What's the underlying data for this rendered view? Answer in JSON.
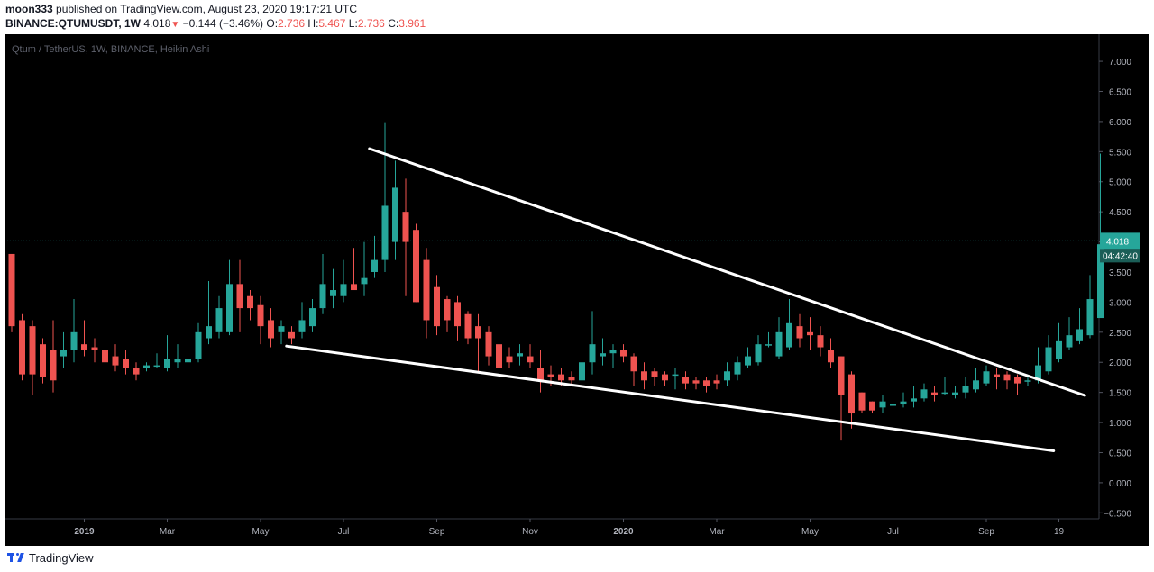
{
  "header": {
    "author": "moon333",
    "published_text": "published on TradingView.com, August 23, 2020 19:17:21 UTC",
    "symbol": "BINANCE:QTUMUSDT, 1W",
    "last": "4.018",
    "change_arrow": "▼",
    "change": "−0.144 (−3.46%)",
    "o_label": "O:",
    "o": "2.736",
    "h_label": "H:",
    "h": "5.467",
    "l_label": "L:",
    "l": "2.736",
    "c_label": "C:",
    "c": "3.961"
  },
  "footer": {
    "brand": "TradingView",
    "logo_icon": "tradingview-logo-icon"
  },
  "colors": {
    "background": "#000000",
    "up": "#26a69a",
    "down": "#ef5350",
    "axis_text": "#b2b5be",
    "price_line": "#26a69a",
    "trendline": "#ffffff"
  },
  "chart_data": {
    "type": "candlestick",
    "title": "Qtum / TetherUS, 1W, BINANCE, Heikin Ashi",
    "y_ticks": [
      "7.000",
      "6.500",
      "6.000",
      "5.500",
      "5.000",
      "4.500",
      "4.000",
      "3.500",
      "3.000",
      "2.500",
      "2.000",
      "1.500",
      "1.000",
      "0.500",
      "0.000",
      "−0.500"
    ],
    "ylim": [
      -0.6,
      7.45
    ],
    "x_ticks": [
      {
        "label": "2019",
        "week": 7,
        "bold": true
      },
      {
        "label": "Mar",
        "week": 15
      },
      {
        "label": "May",
        "week": 24
      },
      {
        "label": "Jul",
        "week": 32
      },
      {
        "label": "Sep",
        "week": 41
      },
      {
        "label": "Nov",
        "week": 50
      },
      {
        "label": "2020",
        "week": 59,
        "bold": true
      },
      {
        "label": "Mar",
        "week": 68
      },
      {
        "label": "May",
        "week": 77
      },
      {
        "label": "Jul",
        "week": 85
      },
      {
        "label": "Sep",
        "week": 94
      },
      {
        "label": "19",
        "week": 101
      }
    ],
    "x_range": [
      0,
      104
    ],
    "current_price": "4.018",
    "countdown": "04:42:40",
    "candles": [
      [
        3.8,
        2.6,
        3.8,
        2.5
      ],
      [
        2.7,
        1.8,
        2.8,
        1.7
      ],
      [
        2.6,
        1.8,
        2.7,
        1.45
      ],
      [
        2.3,
        1.75,
        2.4,
        1.65
      ],
      [
        2.2,
        1.7,
        2.7,
        1.5
      ],
      [
        2.1,
        2.2,
        2.5,
        1.9
      ],
      [
        2.2,
        2.5,
        3.05,
        2.0
      ],
      [
        2.3,
        2.2,
        2.7,
        2.1
      ],
      [
        2.25,
        2.2,
        2.4,
        2.0
      ],
      [
        2.2,
        2.0,
        2.4,
        1.9
      ],
      [
        2.1,
        1.95,
        2.3,
        1.85
      ],
      [
        2.05,
        1.9,
        2.2,
        1.8
      ],
      [
        1.9,
        1.8,
        2.0,
        1.7
      ],
      [
        1.9,
        1.95,
        2.0,
        1.85
      ],
      [
        1.95,
        1.95,
        2.15,
        1.9
      ],
      [
        1.9,
        2.05,
        2.45,
        1.85
      ],
      [
        2.0,
        2.05,
        2.3,
        1.9
      ],
      [
        2.0,
        2.05,
        2.4,
        1.95
      ],
      [
        2.05,
        2.5,
        2.65,
        2.0
      ],
      [
        2.4,
        2.6,
        3.35,
        2.3
      ],
      [
        2.5,
        2.9,
        3.1,
        2.4
      ],
      [
        2.5,
        3.3,
        3.7,
        2.45
      ],
      [
        3.3,
        2.9,
        3.7,
        2.5
      ],
      [
        3.1,
        2.9,
        3.2,
        2.7
      ],
      [
        2.95,
        2.6,
        3.1,
        2.3
      ],
      [
        2.7,
        2.4,
        2.9,
        2.25
      ],
      [
        2.5,
        2.6,
        2.7,
        2.3
      ],
      [
        2.5,
        2.4,
        2.6,
        2.3
      ],
      [
        2.5,
        2.7,
        3.0,
        2.4
      ],
      [
        2.6,
        2.9,
        3.05,
        2.5
      ],
      [
        2.9,
        3.3,
        3.8,
        2.8
      ],
      [
        3.1,
        3.2,
        3.55,
        2.9
      ],
      [
        3.1,
        3.3,
        3.7,
        3.0
      ],
      [
        3.3,
        3.2,
        3.9,
        3.2
      ],
      [
        3.3,
        3.4,
        4.0,
        3.1
      ],
      [
        3.5,
        3.7,
        4.1,
        3.4
      ],
      [
        3.7,
        4.6,
        5.99,
        3.5
      ],
      [
        4.0,
        4.9,
        5.35,
        3.7
      ],
      [
        4.5,
        4.0,
        5.05,
        3.1
      ],
      [
        4.2,
        3.0,
        4.3,
        3.0
      ],
      [
        3.7,
        2.7,
        3.9,
        2.4
      ],
      [
        3.25,
        2.6,
        3.45,
        2.45
      ],
      [
        3.05,
        2.7,
        3.1,
        2.5
      ],
      [
        3.0,
        2.6,
        3.1,
        2.35
      ],
      [
        2.8,
        2.4,
        2.85,
        2.3
      ],
      [
        2.6,
        2.4,
        2.8,
        1.85
      ],
      [
        2.5,
        2.1,
        2.6,
        1.95
      ],
      [
        2.3,
        1.9,
        2.5,
        1.85
      ],
      [
        2.1,
        2.0,
        2.25,
        1.9
      ],
      [
        2.1,
        2.15,
        2.3,
        1.95
      ],
      [
        2.1,
        2.0,
        2.3,
        1.9
      ],
      [
        1.9,
        1.7,
        2.2,
        1.5
      ],
      [
        1.8,
        1.75,
        1.95,
        1.6
      ],
      [
        1.8,
        1.7,
        1.9,
        1.6
      ],
      [
        1.75,
        1.7,
        1.85,
        1.6
      ],
      [
        1.7,
        2.0,
        2.45,
        1.6
      ],
      [
        2.0,
        2.3,
        2.85,
        1.8
      ],
      [
        2.1,
        2.15,
        2.4,
        1.95
      ],
      [
        2.15,
        2.2,
        2.3,
        1.9
      ],
      [
        2.2,
        2.1,
        2.3,
        2.0
      ],
      [
        2.1,
        1.85,
        2.15,
        1.6
      ],
      [
        1.85,
        1.7,
        2.0,
        1.55
      ],
      [
        1.85,
        1.75,
        1.9,
        1.6
      ],
      [
        1.8,
        1.7,
        1.85,
        1.6
      ],
      [
        1.8,
        1.8,
        1.9,
        1.55
      ],
      [
        1.75,
        1.65,
        1.85,
        1.55
      ],
      [
        1.7,
        1.65,
        1.75,
        1.55
      ],
      [
        1.7,
        1.6,
        1.75,
        1.5
      ],
      [
        1.7,
        1.65,
        1.8,
        1.55
      ],
      [
        1.7,
        1.85,
        2.0,
        1.6
      ],
      [
        1.8,
        2.0,
        2.1,
        1.7
      ],
      [
        1.95,
        2.1,
        2.25,
        1.9
      ],
      [
        2.0,
        2.3,
        2.45,
        1.95
      ],
      [
        2.3,
        2.3,
        2.5,
        2.25
      ],
      [
        2.1,
        2.5,
        2.75,
        2.05
      ],
      [
        2.25,
        2.65,
        3.05,
        2.2
      ],
      [
        2.6,
        2.4,
        2.8,
        2.25
      ],
      [
        2.5,
        2.45,
        2.75,
        2.2
      ],
      [
        2.45,
        2.25,
        2.6,
        2.1
      ],
      [
        2.2,
        2.0,
        2.4,
        1.9
      ],
      [
        2.1,
        1.45,
        2.1,
        0.7
      ],
      [
        1.8,
        1.15,
        1.85,
        0.9
      ],
      [
        1.5,
        1.2,
        1.5,
        1.15
      ],
      [
        1.35,
        1.2,
        1.35,
        1.15
      ],
      [
        1.25,
        1.35,
        1.45,
        1.15
      ],
      [
        1.3,
        1.3,
        1.45,
        1.25
      ],
      [
        1.3,
        1.35,
        1.5,
        1.25
      ],
      [
        1.35,
        1.4,
        1.6,
        1.25
      ],
      [
        1.4,
        1.55,
        1.65,
        1.35
      ],
      [
        1.5,
        1.45,
        1.6,
        1.35
      ],
      [
        1.5,
        1.5,
        1.75,
        1.45
      ],
      [
        1.45,
        1.5,
        1.6,
        1.4
      ],
      [
        1.5,
        1.6,
        1.75,
        1.4
      ],
      [
        1.55,
        1.7,
        1.9,
        1.5
      ],
      [
        1.65,
        1.85,
        1.95,
        1.6
      ],
      [
        1.8,
        1.75,
        1.9,
        1.55
      ],
      [
        1.8,
        1.7,
        1.85,
        1.55
      ],
      [
        1.75,
        1.65,
        1.8,
        1.45
      ],
      [
        1.7,
        1.7,
        1.75,
        1.6
      ],
      [
        1.7,
        1.95,
        2.25,
        1.65
      ],
      [
        1.85,
        2.25,
        2.45,
        1.8
      ],
      [
        2.05,
        2.35,
        2.65,
        2.0
      ],
      [
        2.25,
        2.45,
        2.75,
        2.2
      ],
      [
        2.35,
        2.55,
        2.9,
        2.3
      ],
      [
        2.45,
        3.05,
        3.45,
        2.4
      ],
      [
        2.736,
        3.961,
        5.467,
        2.736
      ]
    ],
    "trendlines": [
      {
        "x1": 34.5,
        "y1": 5.55,
        "x2": 103.5,
        "y2": 1.45
      },
      {
        "x1": 26.5,
        "y1": 2.27,
        "x2": 100.5,
        "y2": 0.53
      }
    ]
  }
}
